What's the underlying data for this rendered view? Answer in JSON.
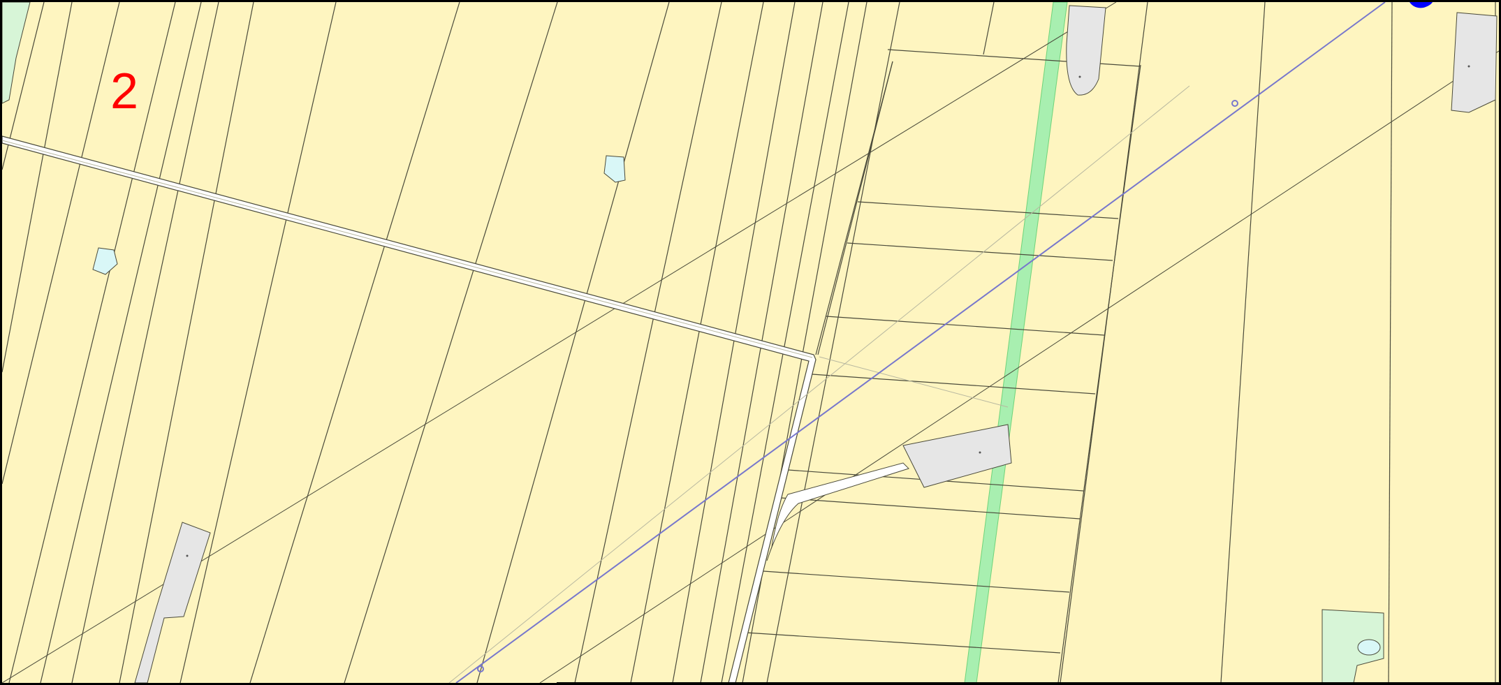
{
  "map": {
    "sheet_number": "2",
    "colors": {
      "parcel_fill": "#fef5c0",
      "parcel_line": "#4a4a3a",
      "road_fill": "#ffffff",
      "building_fill": "#e6e6e6",
      "water_fill": "#d9f7f7",
      "grass_fill": "#d7f5d7",
      "green_strip": "#a8efb0",
      "utility_line": "#7777cc",
      "sheet_label": "#ff0000"
    },
    "layers": [
      "parcels",
      "roads",
      "buildings",
      "water",
      "green-strip",
      "utility-line"
    ]
  }
}
